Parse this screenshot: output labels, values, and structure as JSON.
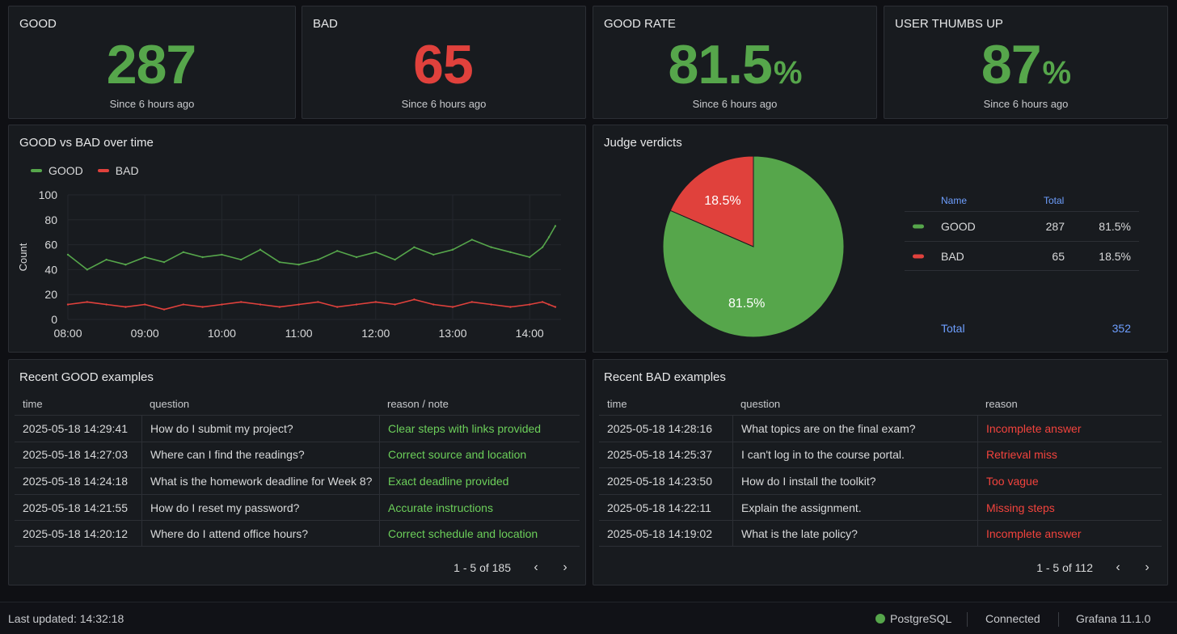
{
  "stats": [
    {
      "title": "GOOD",
      "value": "287",
      "unit": "",
      "since": "Since 6 hours ago",
      "color": "#56a64b"
    },
    {
      "title": "BAD",
      "value": "65",
      "unit": "",
      "since": "Since 6 hours ago",
      "color": "#e0413c"
    },
    {
      "title": "GOOD RATE",
      "value": "81.5",
      "unit": "%",
      "since": "Since 6 hours ago",
      "color": "#56a64b"
    },
    {
      "title": "USER THUMBS UP",
      "value": "87",
      "unit": "%",
      "since": "Since 6 hours ago",
      "color": "#56a64b"
    }
  ],
  "timeseries": {
    "title": "GOOD vs BAD over time",
    "legend": [
      "GOOD",
      "BAD"
    ]
  },
  "pie": {
    "title": "Judge verdicts",
    "columns": {
      "name": "Name",
      "total": "Total"
    },
    "rows": [
      {
        "name": "GOOD",
        "total": "287",
        "pct": "81.5%",
        "color": "#56a64b"
      },
      {
        "name": "BAD",
        "total": "65",
        "pct": "18.5%",
        "color": "#e0413c"
      }
    ],
    "total_label": "Total",
    "total_value": "352",
    "slice_labels": [
      "81.5%",
      "18.5%"
    ]
  },
  "good_table": {
    "title": "Recent GOOD examples",
    "columns": [
      "time",
      "question",
      "reason / note"
    ],
    "rows": [
      [
        "2025-05-18 14:29:41",
        "How do I submit my project?",
        "Clear steps with links provided"
      ],
      [
        "2025-05-18 14:27:03",
        "Where can I find the readings?",
        "Correct source and location"
      ],
      [
        "2025-05-18 14:24:18",
        "What is the homework deadline for Week 8?",
        "Exact deadline provided"
      ],
      [
        "2025-05-18 14:21:55",
        "How do I reset my password?",
        "Accurate instructions"
      ],
      [
        "2025-05-18 14:20:12",
        "Where do I attend office hours?",
        "Correct schedule and location"
      ]
    ],
    "pager": "1 - 5 of 185"
  },
  "bad_table": {
    "title": "Recent BAD examples",
    "columns": [
      "time",
      "question",
      "reason"
    ],
    "rows": [
      [
        "2025-05-18 14:28:16",
        "What topics are on the final exam?",
        "Incomplete answer"
      ],
      [
        "2025-05-18 14:25:37",
        "I can't log in to the course portal.",
        "Retrieval miss"
      ],
      [
        "2025-05-18 14:23:50",
        "How do I install the toolkit?",
        "Too vague"
      ],
      [
        "2025-05-18 14:22:11",
        "Explain the assignment.",
        "Missing steps"
      ],
      [
        "2025-05-18 14:19:02",
        "What is the late policy?",
        "Incomplete answer"
      ]
    ],
    "pager": "1 - 5 of 112"
  },
  "footer": {
    "last_updated": "Last updated: 14:32:18",
    "datasource": "PostgreSQL",
    "status": "Connected",
    "version": "Grafana 11.1.0"
  },
  "chart_data": [
    {
      "type": "line",
      "title": "GOOD vs BAD over time",
      "xlabel": "",
      "ylabel": "Count",
      "x_ticks": [
        "08:00",
        "09:00",
        "10:00",
        "11:00",
        "12:00",
        "13:00",
        "14:00"
      ],
      "y_ticks": [
        0,
        20,
        40,
        60,
        80,
        100
      ],
      "ylim": [
        0,
        100
      ],
      "grid": true,
      "legend_position": "top-left",
      "series": [
        {
          "name": "GOOD",
          "color": "#56a64b",
          "x": [
            "08:00",
            "08:15",
            "08:30",
            "08:45",
            "09:00",
            "09:15",
            "09:30",
            "09:45",
            "10:00",
            "10:15",
            "10:30",
            "10:45",
            "11:00",
            "11:15",
            "11:30",
            "11:45",
            "12:00",
            "12:15",
            "12:30",
            "12:45",
            "13:00",
            "13:15",
            "13:30",
            "13:45",
            "14:00",
            "14:10",
            "14:15",
            "14:20"
          ],
          "values": [
            52,
            40,
            48,
            44,
            50,
            46,
            54,
            50,
            52,
            48,
            56,
            46,
            44,
            48,
            55,
            50,
            54,
            48,
            58,
            52,
            56,
            64,
            58,
            54,
            50,
            58,
            66,
            75
          ]
        },
        {
          "name": "BAD",
          "color": "#e0413c",
          "x": [
            "08:00",
            "08:15",
            "08:30",
            "08:45",
            "09:00",
            "09:15",
            "09:30",
            "09:45",
            "10:00",
            "10:15",
            "10:30",
            "10:45",
            "11:00",
            "11:15",
            "11:30",
            "11:45",
            "12:00",
            "12:15",
            "12:30",
            "12:45",
            "13:00",
            "13:15",
            "13:30",
            "13:45",
            "14:00",
            "14:10",
            "14:15",
            "14:20"
          ],
          "values": [
            12,
            14,
            12,
            10,
            12,
            8,
            12,
            10,
            12,
            14,
            12,
            10,
            12,
            14,
            10,
            12,
            14,
            12,
            16,
            12,
            10,
            14,
            12,
            10,
            12,
            14,
            12,
            10
          ]
        }
      ]
    },
    {
      "type": "pie",
      "title": "Judge verdicts",
      "categories": [
        "GOOD",
        "BAD"
      ],
      "values": [
        287,
        65
      ],
      "percent_labels": [
        "81.5%",
        "18.5%"
      ],
      "colors": [
        "#56a64b",
        "#e0413c"
      ],
      "legend_position": "right"
    }
  ]
}
